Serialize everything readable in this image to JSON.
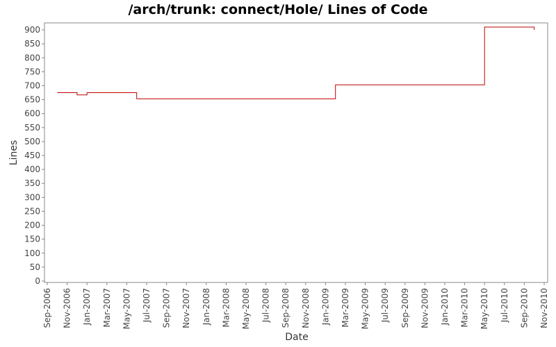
{
  "chart_data": {
    "type": "line",
    "step": true,
    "title": "/arch/trunk: connect/Hole/ Lines of Code",
    "x_label": "Date",
    "y_label": "Lines",
    "x": [
      "2006-10",
      "2006-12",
      "2007-01",
      "2007-06",
      "2009-02",
      "2010-05",
      "2010-10"
    ],
    "series": [
      {
        "name": "Lines",
        "color": "#c00000",
        "values": [
          675,
          667,
          675,
          653,
          703,
          910,
          900
        ]
      }
    ],
    "xlim": [
      "2006-09",
      "2010-11"
    ],
    "xticks": [
      {
        "value": "2006-09",
        "label": "Sep-2006"
      },
      {
        "value": "2006-11",
        "label": "Nov-2006"
      },
      {
        "value": "2007-01",
        "label": "Jan-2007"
      },
      {
        "value": "2007-03",
        "label": "Mar-2007"
      },
      {
        "value": "2007-05",
        "label": "May-2007"
      },
      {
        "value": "2007-07",
        "label": "Jul-2007"
      },
      {
        "value": "2007-09",
        "label": "Sep-2007"
      },
      {
        "value": "2007-11",
        "label": "Nov-2007"
      },
      {
        "value": "2008-01",
        "label": "Jan-2008"
      },
      {
        "value": "2008-03",
        "label": "Mar-2008"
      },
      {
        "value": "2008-05",
        "label": "May-2008"
      },
      {
        "value": "2008-07",
        "label": "Jul-2008"
      },
      {
        "value": "2008-09",
        "label": "Sep-2008"
      },
      {
        "value": "2008-11",
        "label": "Nov-2008"
      },
      {
        "value": "2009-01",
        "label": "Jan-2009"
      },
      {
        "value": "2009-03",
        "label": "Mar-2009"
      },
      {
        "value": "2009-05",
        "label": "May-2009"
      },
      {
        "value": "2009-07",
        "label": "Jul-2009"
      },
      {
        "value": "2009-09",
        "label": "Sep-2009"
      },
      {
        "value": "2009-11",
        "label": "Nov-2009"
      },
      {
        "value": "2010-01",
        "label": "Jan-2010"
      },
      {
        "value": "2010-03",
        "label": "Mar-2010"
      },
      {
        "value": "2010-05",
        "label": "May-2010"
      },
      {
        "value": "2010-07",
        "label": "Jul-2010"
      },
      {
        "value": "2010-09",
        "label": "Sep-2010"
      },
      {
        "value": "2010-11",
        "label": "Nov-2010"
      }
    ],
    "ylim": [
      -5,
      925
    ],
    "yticks": [
      0,
      50,
      100,
      150,
      200,
      250,
      300,
      350,
      400,
      450,
      500,
      550,
      600,
      650,
      700,
      750,
      800,
      850,
      900
    ],
    "grid": false
  }
}
